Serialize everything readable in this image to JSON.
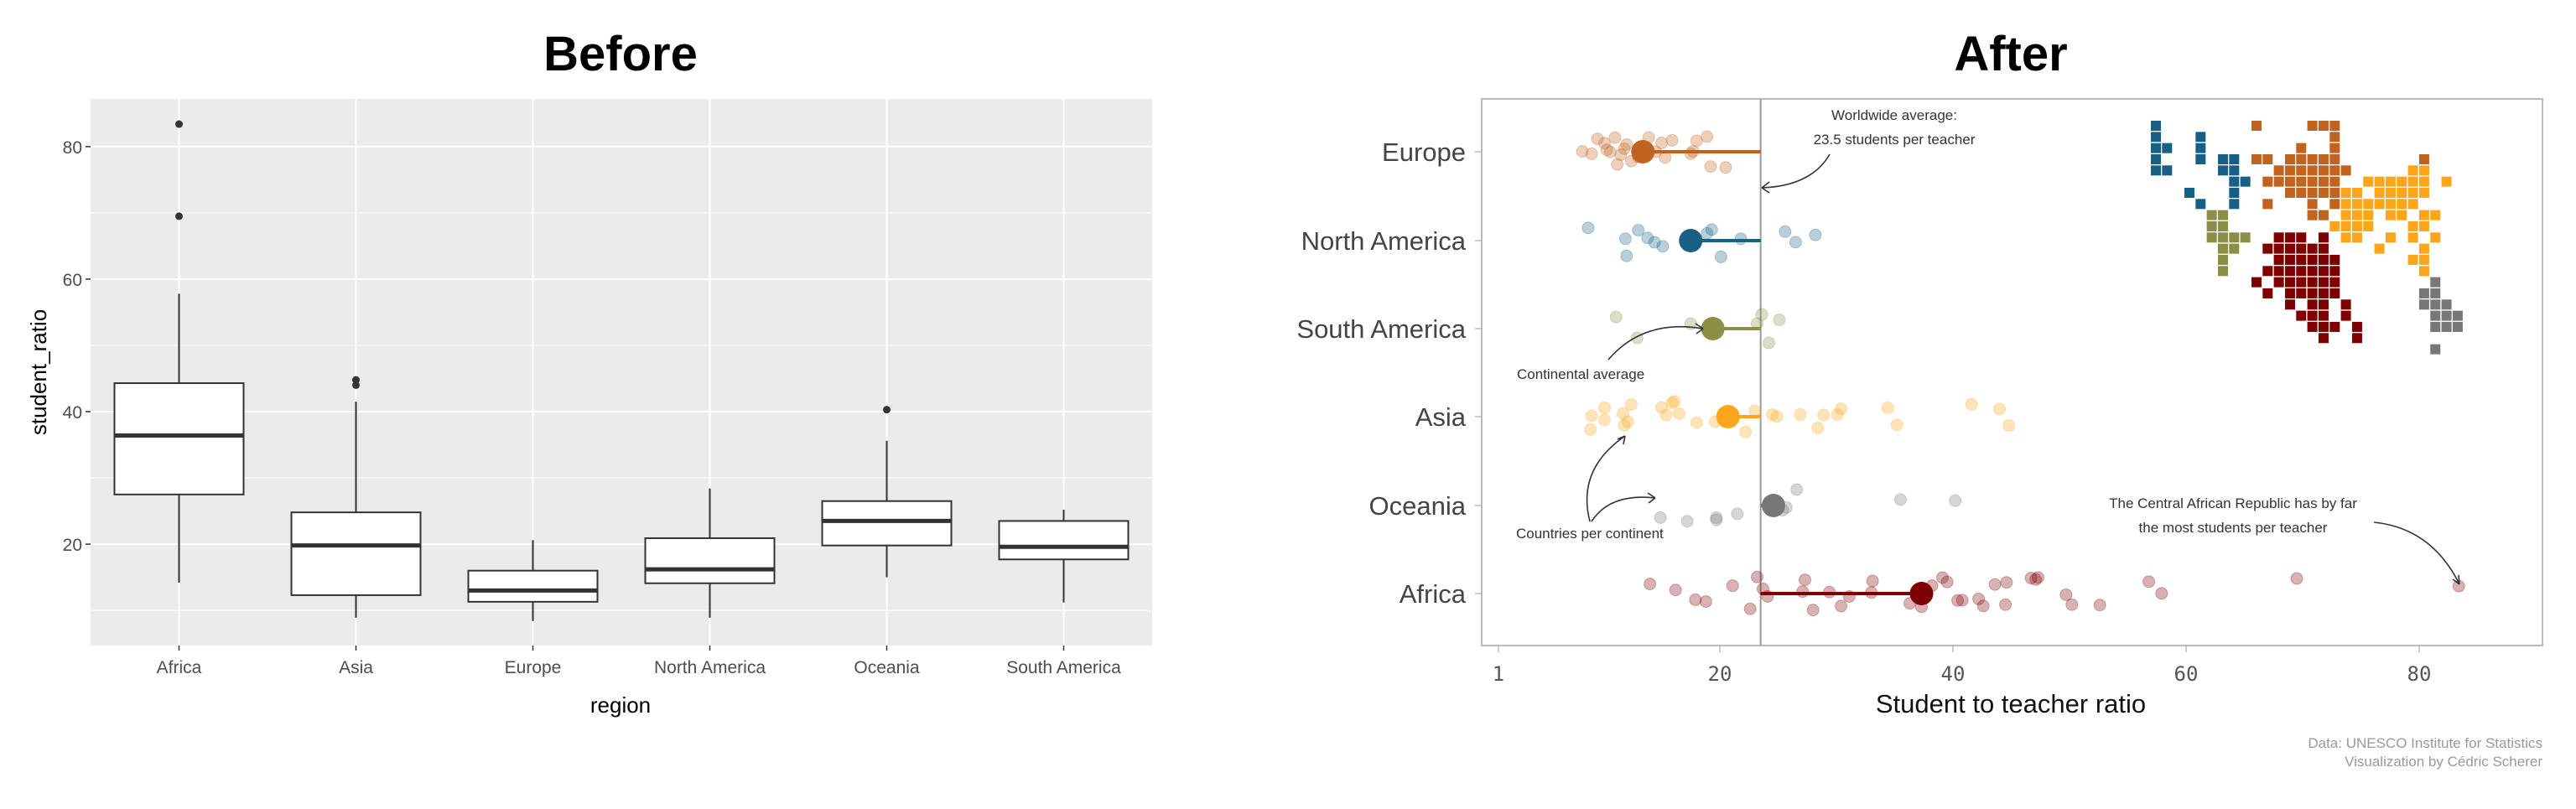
{
  "chart_data": [
    {
      "type": "box",
      "title": "Before",
      "xlabel": "region",
      "ylabel": "student_ratio",
      "ylim": [
        4.7,
        87.2
      ],
      "yticks": [
        "20",
        "40",
        "60",
        "80"
      ],
      "grid": true,
      "categories": [
        "Africa",
        "Asia",
        "Europe",
        "North America",
        "Oceania",
        "South America"
      ],
      "boxes": [
        {
          "low": 14.2,
          "q1": 27.5,
          "median": 36.4,
          "q3": 44.3,
          "high": 57.8,
          "outliers": [
            69.5,
            83.4
          ]
        },
        {
          "low": 8.9,
          "q1": 12.3,
          "median": 19.8,
          "q3": 24.8,
          "high": 41.5,
          "outliers": [
            44.0,
            44.8
          ]
        },
        {
          "low": 8.4,
          "q1": 11.3,
          "median": 13.0,
          "q3": 16.0,
          "high": 20.6,
          "outliers": []
        },
        {
          "low": 8.9,
          "q1": 14.1,
          "median": 16.2,
          "q3": 20.9,
          "high": 28.4,
          "outliers": []
        },
        {
          "low": 15.0,
          "q1": 19.8,
          "median": 23.5,
          "q3": 26.5,
          "high": 35.6,
          "outliers": [
            40.3
          ]
        },
        {
          "low": 11.2,
          "q1": 17.7,
          "median": 19.6,
          "q3": 23.5,
          "high": 25.2,
          "outliers": []
        }
      ]
    },
    {
      "type": "scatter",
      "title": "After",
      "xlabel": "Student to teacher ratio",
      "xticks": [
        "1",
        "20",
        "40",
        "60",
        "80"
      ],
      "xlim": [
        0,
        90
      ],
      "worldwide_average": 23.5,
      "series": [
        {
          "name": "Europe",
          "color": "#c0631f",
          "mean": 13.4,
          "values": [
            8.2,
            9.0,
            9.5,
            10.1,
            10.3,
            10.6,
            11.0,
            11.2,
            11.5,
            11.8,
            12.0,
            12.4,
            13.0,
            13.9,
            14.5,
            15.0,
            15.3,
            15.9,
            17.5,
            17.7,
            18.0,
            18.9,
            19.2,
            20.5
          ]
        },
        {
          "name": "North America",
          "color": "#185f85",
          "mean": 17.5,
          "values": [
            8.7,
            11.9,
            12.0,
            13.0,
            13.8,
            14.4,
            15.1,
            18.9,
            19.3,
            20.1,
            21.8,
            25.6,
            26.5,
            28.2
          ]
        },
        {
          "name": "South America",
          "color": "#8a8f45",
          "mean": 19.4,
          "values": [
            11.1,
            12.9,
            17.5,
            23.2,
            23.6,
            24.2,
            25.1
          ]
        },
        {
          "name": "Asia",
          "color": "#ffa51c",
          "mean": 20.7,
          "values": [
            8.9,
            9.0,
            10.1,
            10.1,
            11.7,
            11.8,
            12.1,
            12.4,
            15.0,
            15.4,
            15.9,
            16.1,
            16.5,
            18.0,
            19.6,
            22.2,
            23.0,
            24.5,
            24.9,
            26.9,
            28.4,
            28.9,
            30.1,
            30.4,
            34.4,
            35.2,
            41.6,
            44.0,
            44.8
          ]
        },
        {
          "name": "Oceania",
          "color": "#777777",
          "mean": 24.6,
          "values": [
            14.9,
            17.2,
            19.7,
            19.7,
            21.5,
            25.4,
            25.7,
            26.6,
            35.5,
            40.2
          ]
        },
        {
          "name": "Africa",
          "color": "#7f0000",
          "mean": 37.3,
          "values": [
            14.0,
            16.2,
            17.9,
            18.8,
            21.1,
            22.6,
            23.2,
            23.7,
            24.1,
            27.1,
            27.3,
            28.0,
            29.4,
            30.4,
            31.1,
            33.0,
            33.1,
            36.3,
            37.3,
            38.2,
            39.1,
            39.5,
            40.4,
            40.8,
            42.2,
            42.6,
            43.6,
            44.5,
            44.6,
            46.7,
            47.1,
            47.3,
            49.7,
            50.2,
            52.6,
            56.8,
            57.9,
            69.5,
            83.4
          ]
        }
      ],
      "annotations": {
        "worldwide_1": "Worldwide average:",
        "worldwide_2": "23.5 students per teacher",
        "continental": "Continental average",
        "countries": "Countries per continent",
        "car_1": "The Central African Republic has by far",
        "car_2": "the most students per teacher"
      },
      "tile_map_legend": {
        "B": "North America",
        "E": "Europe",
        "G": "South America",
        "A": "Asia",
        "F": "Africa",
        "O": "Oceania"
      },
      "tile_map": [
        "B........E....EEE...........",
        "B...B...........E...........",
        "BB..B........E..E...........",
        "B...B.BB.EE.EEEEE.......E...",
        "BB....BB...EEEEEEE.....AA...",
        ".......BB.EEEEEEE..AAAAAA.A.",
        "...B...B....EEEEEAA.AAAAA...",
        "....B..B..E...E.EAAAAAAA....",
        ".....GG.......EE.AAA.AA.AA..",
        ".....GG.........AAAA...AA...",
        ".....GGGG..FFF.F.AA..A.A.A..",
        "......GG..FFFFFF....A...A...",
        "......G....FFFFFF......AA...",
        "......G...FFFFFFF.......A...",
        ".........F.FFFFFF........O..",
        "..........F.FFFFF.......OO..",
        "............F.FF.F......OOO.",
        ".............FFF.F.......OOO",
        "..............FFF.F......OOO",
        "...............F..F.........",
        ".........................O.."
      ]
    }
  ],
  "caption": {
    "line1": "Data: UNESCO Institute for Statistics",
    "line2": "Visualization by Cédric Scherer"
  }
}
